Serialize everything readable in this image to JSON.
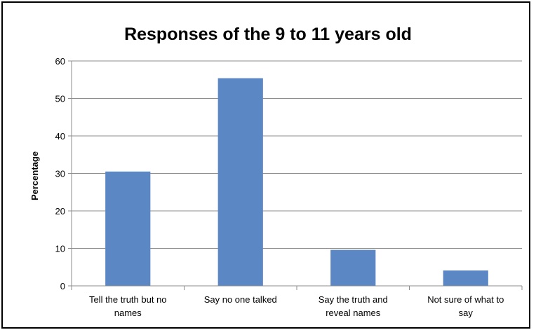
{
  "chart_data": {
    "type": "bar",
    "title": "Responses of the 9 to 11 years old",
    "xlabel": "",
    "ylabel": "Percentage",
    "categories": [
      [
        "Tell the truth but no",
        "names"
      ],
      [
        "Say no one talked"
      ],
      [
        "Say the truth and",
        "reveal names"
      ],
      [
        "Not sure of what to",
        "say"
      ]
    ],
    "values": [
      30.5,
      55.4,
      9.6,
      4.1
    ],
    "ylim": [
      0,
      60
    ],
    "yticks": [
      "0",
      "10",
      "20",
      "30",
      "40",
      "50",
      "60"
    ],
    "grid": true,
    "legend": "none",
    "colors": {
      "bar": "#5b87c5",
      "grid": "#8c8c8c",
      "axis": "#8c8c8c",
      "frame": "#000000"
    }
  }
}
